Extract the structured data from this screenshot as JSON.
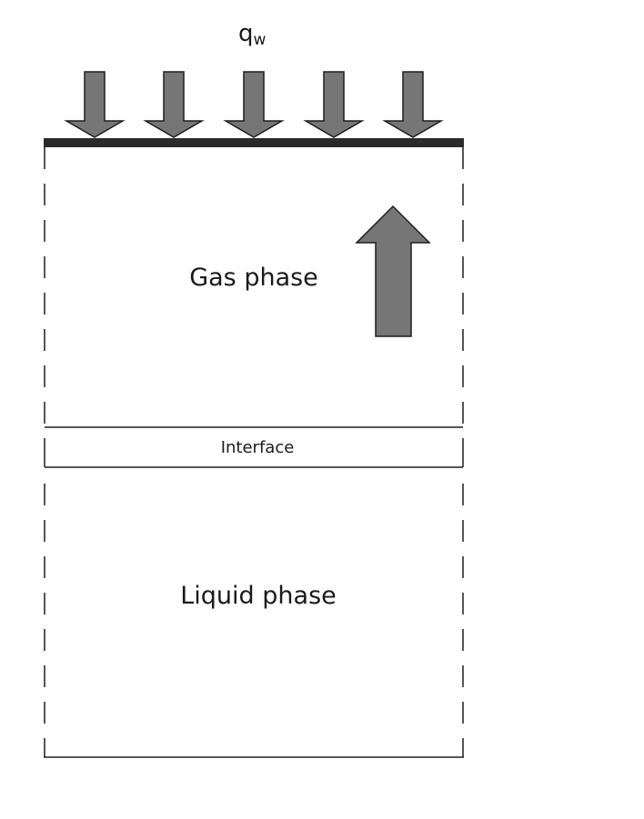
{
  "heat_flux": {
    "symbol": "q",
    "subscript": "w"
  },
  "regions": {
    "gas_label": "Gas phase",
    "interface_label": "Interface",
    "liquid_label": "Liquid phase"
  },
  "colors": {
    "arrow_fill": "#767676",
    "arrow_stroke": "#1e1e1e",
    "wall": "#2a2a2a",
    "line": "#1e1e1e",
    "background": "#ffffff"
  }
}
